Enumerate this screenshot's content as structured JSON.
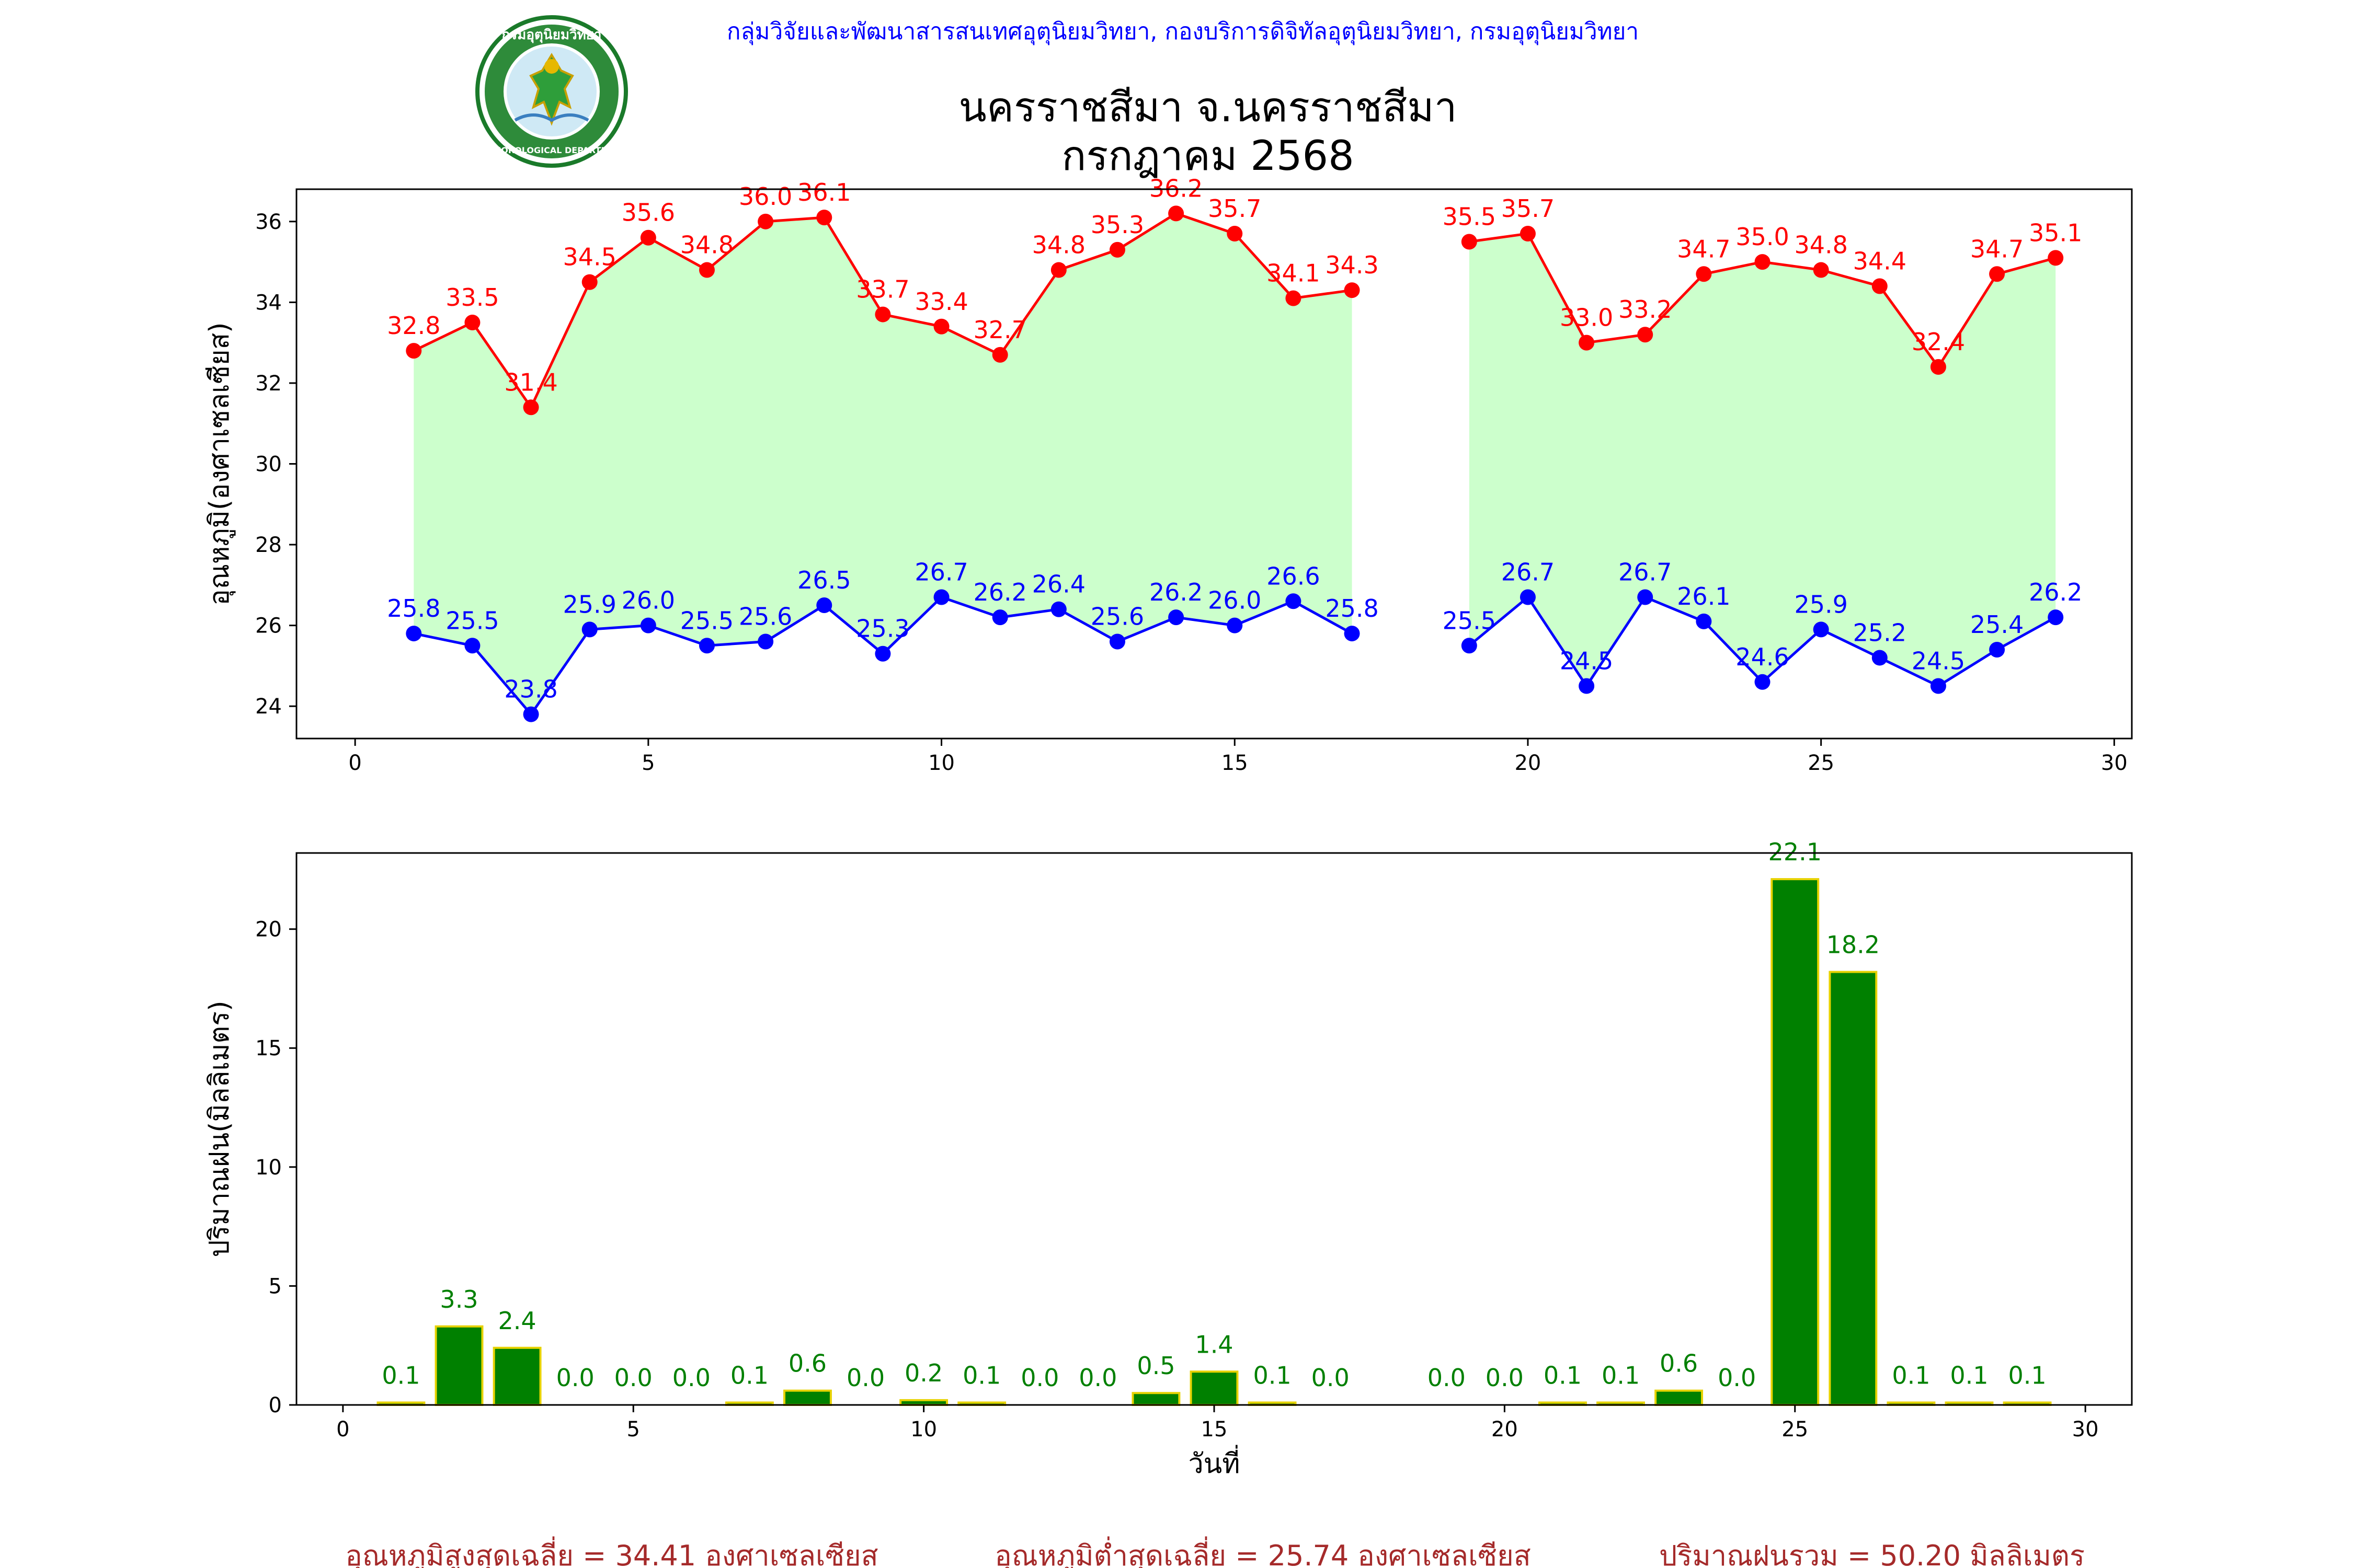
{
  "header": {
    "org_line": "กลุ่มวิจัยและพัฒนาสารสนเทศอุตุนิยมวิทยา, กองบริการดิจิทัลอุตุนิยมวิทยา, กรมอุตุนิยมวิทยา",
    "title_line1": "นครราชสีมา จ.นครราชสีมา",
    "title_line2": "กรกฎาคม 2568",
    "logo_text_top": "กรมอุตุนิยมวิทยา",
    "logo_text_bottom": "METEOROLOGICAL DEPARTMENT"
  },
  "colors": {
    "max": "#ff0000",
    "min": "#0000ff",
    "fill": "#ccffcc",
    "bar": "#008000",
    "bar_edge": "#e6d200",
    "org": "#0000ff",
    "footer": "#a52a2a"
  },
  "chart_data": [
    {
      "type": "line",
      "ylabel": "อุณหภูมิ(องศาเซลเซียส)",
      "xlim": [
        -1,
        30.3
      ],
      "ylim": [
        23.2,
        36.8
      ],
      "x_ticks": [
        0,
        5,
        10,
        15,
        20,
        25,
        30
      ],
      "y_ticks": [
        24,
        26,
        28,
        30,
        32,
        34,
        36
      ],
      "days": [
        1,
        2,
        3,
        4,
        5,
        6,
        7,
        8,
        9,
        10,
        11,
        12,
        13,
        14,
        15,
        16,
        17,
        19,
        20,
        21,
        22,
        23,
        24,
        25,
        26,
        27,
        28,
        29
      ],
      "series": [
        {
          "key": "max",
          "values": [
            32.8,
            33.5,
            31.4,
            34.5,
            35.6,
            34.8,
            36.0,
            36.1,
            33.7,
            33.4,
            32.7,
            34.8,
            35.3,
            36.2,
            35.7,
            34.1,
            34.3,
            35.5,
            35.7,
            33.0,
            33.2,
            34.7,
            35.0,
            34.8,
            34.4,
            32.4,
            34.7,
            35.1
          ]
        },
        {
          "key": "min",
          "values": [
            25.8,
            25.5,
            23.8,
            25.9,
            26.0,
            25.5,
            25.6,
            26.5,
            25.3,
            26.7,
            26.2,
            26.4,
            25.6,
            26.2,
            26.0,
            26.6,
            25.8,
            25.5,
            26.7,
            24.5,
            26.7,
            26.1,
            24.6,
            25.9,
            25.2,
            24.5,
            25.4,
            26.2
          ]
        }
      ]
    },
    {
      "type": "bar",
      "ylabel": "ปริมาณฝน(มิลลิเมตร)",
      "xlabel": "วันที่",
      "xlim": [
        -0.8,
        30.8
      ],
      "ylim": [
        0,
        23.2
      ],
      "x_ticks": [
        0,
        5,
        10,
        15,
        20,
        25,
        30
      ],
      "y_ticks": [
        0,
        5,
        10,
        15,
        20
      ],
      "days": [
        1,
        2,
        3,
        4,
        5,
        6,
        7,
        8,
        9,
        10,
        11,
        12,
        13,
        14,
        15,
        16,
        17,
        19,
        20,
        21,
        22,
        23,
        24,
        25,
        26,
        27,
        28,
        29
      ],
      "values": [
        0.1,
        3.3,
        2.4,
        0.0,
        0.0,
        0.0,
        0.1,
        0.6,
        0.0,
        0.2,
        0.1,
        0.0,
        0.0,
        0.5,
        1.4,
        0.1,
        0.0,
        0.0,
        0.0,
        0.1,
        0.1,
        0.6,
        0.0,
        22.1,
        18.2,
        0.1,
        0.1,
        0.1
      ]
    }
  ],
  "footer": {
    "avg_max": "อุณหภูมิสูงสุดเฉลี่ย = 34.41 องศาเซลเซียส",
    "avg_min": "อุณหภูมิต่ำสุดเฉลี่ย = 25.74 องศาเซลเซียส",
    "total_rain": "ปริมาณฝนรวม = 50.20 มิลลิเมตร"
  }
}
